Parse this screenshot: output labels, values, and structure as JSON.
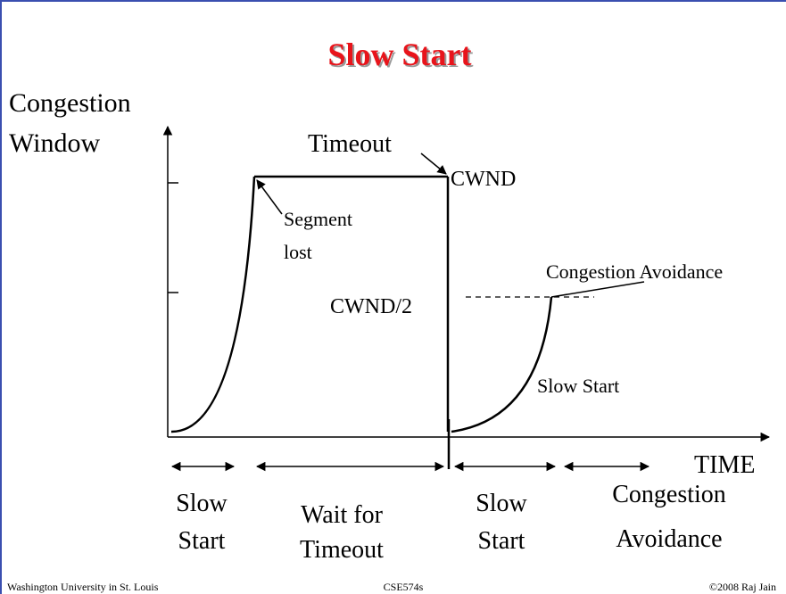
{
  "title": "Slow Start",
  "y_axis_label": [
    "Congestion",
    "Window"
  ],
  "x_axis_label": "TIME",
  "annotations": {
    "timeout": "Timeout",
    "cwnd": "CWND",
    "segment_lost": [
      "Segment",
      "lost"
    ],
    "cwnd_half": "CWND/2",
    "congestion_avoidance": "Congestion Avoidance",
    "slow_start": "Slow Start"
  },
  "phases": [
    [
      "Slow",
      "Start"
    ],
    [
      "Wait for",
      "Timeout"
    ],
    [
      "Slow",
      "Start"
    ],
    [
      "Congestion",
      "Avoidance"
    ]
  ],
  "footer": {
    "left": "Washington University in St. Louis",
    "center": "CSE574s",
    "right": "©2008 Raj Jain"
  }
}
